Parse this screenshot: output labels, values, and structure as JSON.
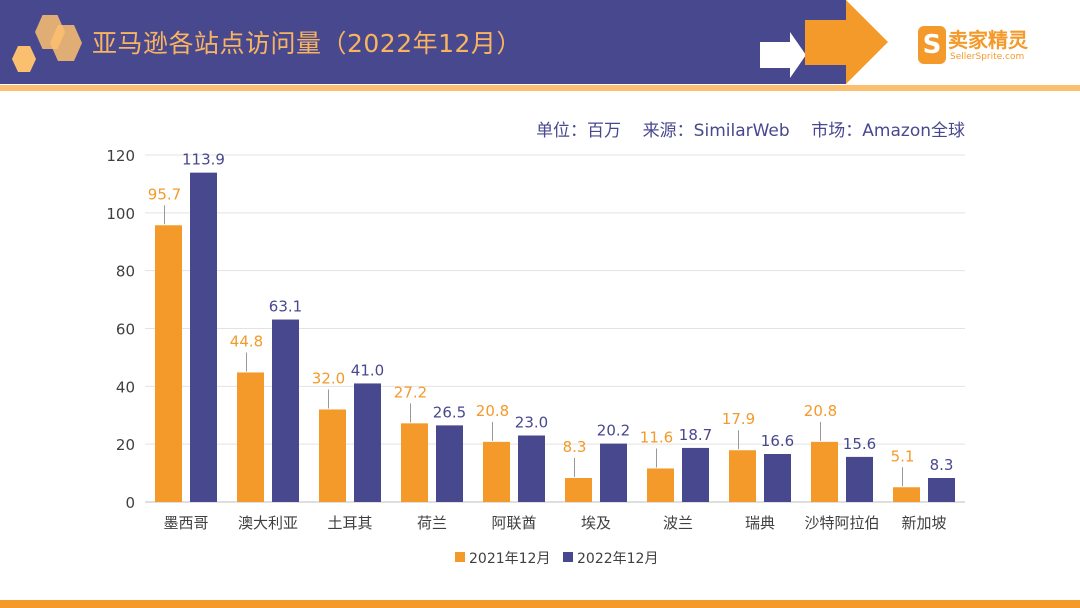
{
  "header": {
    "title": "亚马逊各站点访问量（2022年12月）",
    "logo_cn": "卖家精灵",
    "logo_en": "SellerSprite.com",
    "logo_mark": "S"
  },
  "subtitle": "单位：百万    来源：SimilarWeb    市场：Amazon全球",
  "colors": {
    "header": "#48488f",
    "accent": "#f39a2a",
    "series1": "#f39a2a",
    "series2": "#48488f"
  },
  "chart_data": {
    "type": "bar",
    "categories": [
      "墨西哥",
      "澳大利亚",
      "土耳其",
      "荷兰",
      "阿联酋",
      "埃及",
      "波兰",
      "瑞典",
      "沙特阿拉伯",
      "新加坡"
    ],
    "series": [
      {
        "name": "2021年12月",
        "values": [
          95.7,
          44.8,
          32.0,
          27.2,
          20.8,
          8.3,
          11.6,
          17.9,
          20.8,
          5.1
        ]
      },
      {
        "name": "2022年12月",
        "values": [
          113.9,
          63.1,
          41.0,
          26.5,
          23.0,
          20.2,
          18.7,
          16.6,
          15.6,
          8.3
        ]
      }
    ],
    "ylim": [
      0,
      120
    ],
    "yticks": [
      0,
      20,
      40,
      60,
      80,
      100,
      120
    ],
    "grid": true,
    "legend": "bottom"
  }
}
